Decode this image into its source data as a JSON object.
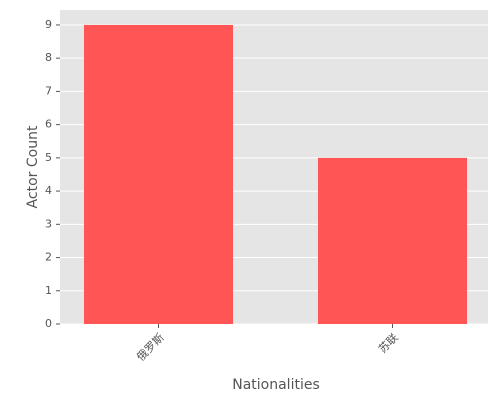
{
  "chart_data": {
    "type": "bar",
    "categories": [
      "俄罗斯",
      "苏联"
    ],
    "values": [
      9,
      5
    ],
    "color": "#ff5555",
    "xlabel": "Nationalities",
    "ylabel": "Actor Count",
    "ylim": [
      0,
      9.45
    ],
    "yticks": [
      0,
      1,
      2,
      3,
      4,
      5,
      6,
      7,
      8,
      9
    ],
    "grid": true
  }
}
